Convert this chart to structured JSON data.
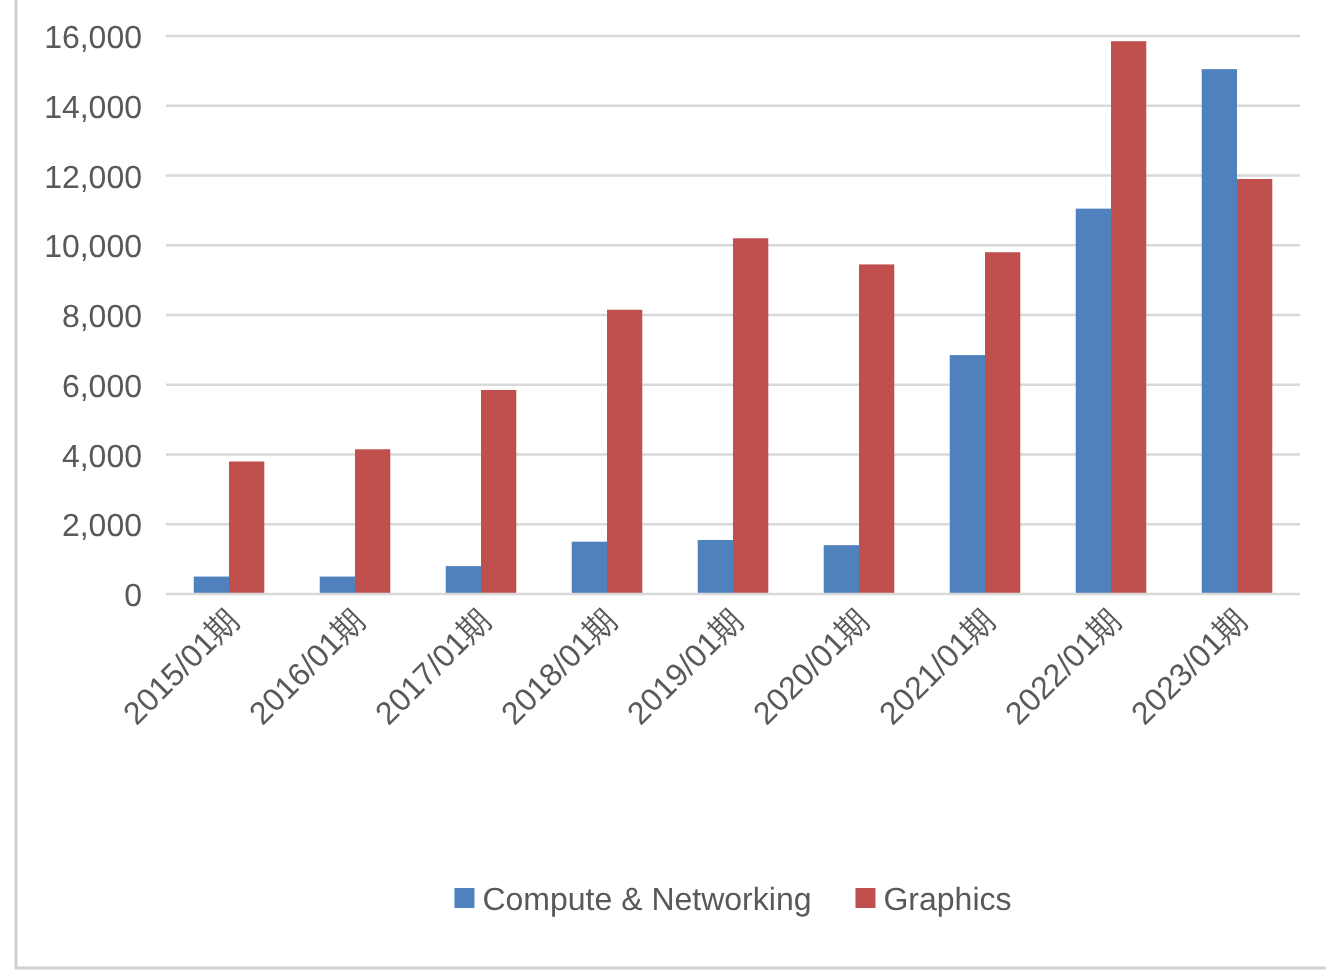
{
  "chart_data": {
    "type": "bar",
    "categories": [
      "2015/01期",
      "2016/01期",
      "2017/01期",
      "2018/01期",
      "2019/01期",
      "2020/01期",
      "2021/01期",
      "2022/01期",
      "2023/01期"
    ],
    "series": [
      {
        "name": "Compute & Networking",
        "color": "#4f81bd",
        "values": [
          500,
          500,
          800,
          1500,
          1550,
          1400,
          6850,
          11050,
          15050
        ]
      },
      {
        "name": "Graphics",
        "color": "#c0504d",
        "values": [
          3800,
          4150,
          5850,
          8150,
          10200,
          9450,
          9800,
          15850,
          11900
        ]
      }
    ],
    "ylim": [
      0,
      16000
    ],
    "yticks": [
      {
        "value": 0,
        "label": "0"
      },
      {
        "value": 2000,
        "label": "2,000"
      },
      {
        "value": 4000,
        "label": "4,000"
      },
      {
        "value": 6000,
        "label": "6,000"
      },
      {
        "value": 8000,
        "label": "8,000"
      },
      {
        "value": 10000,
        "label": "10,000"
      },
      {
        "value": 12000,
        "label": "12,000"
      },
      {
        "value": 14000,
        "label": "14,000"
      },
      {
        "value": 16000,
        "label": "16,000"
      }
    ],
    "grid": "y",
    "legend": "bottom"
  }
}
